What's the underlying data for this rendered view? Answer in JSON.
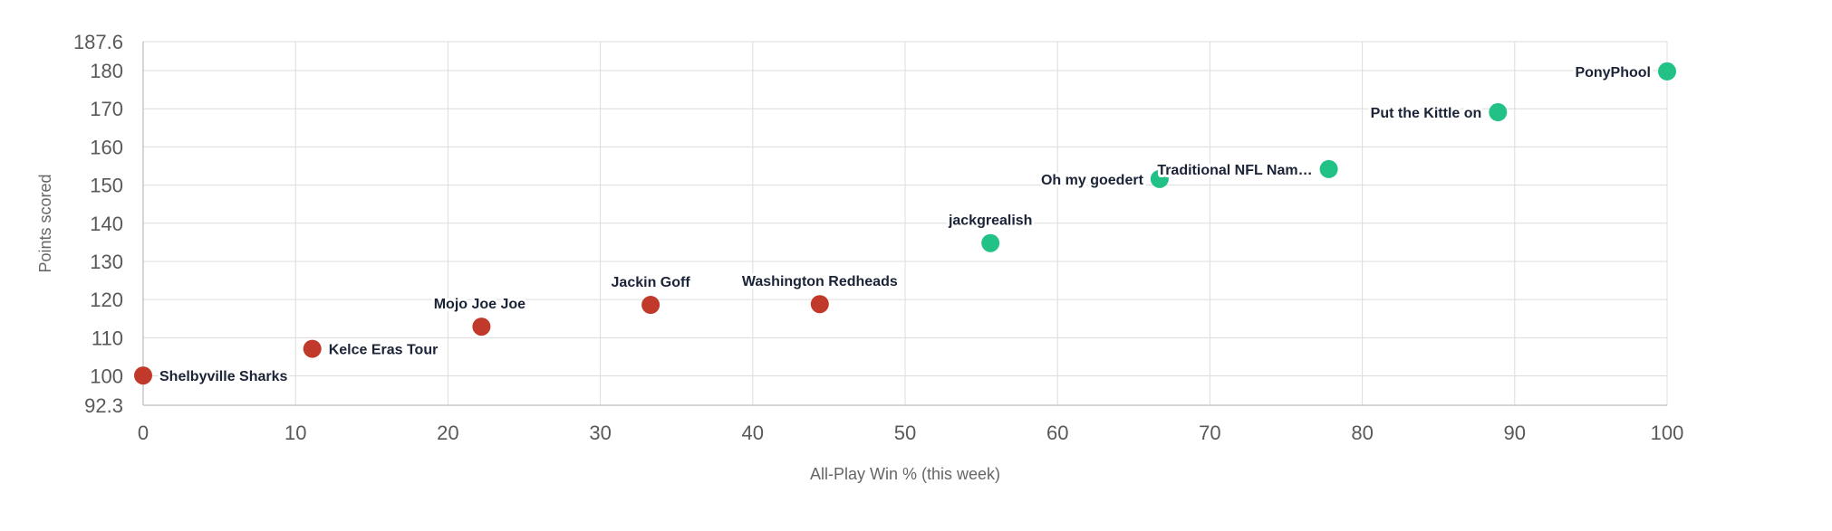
{
  "chart_data": {
    "type": "scatter",
    "title": "",
    "xlabel": "All-Play Win % (this week)",
    "ylabel": "Points scored",
    "xlim": [
      0,
      100
    ],
    "ylim": [
      92.3,
      187.6
    ],
    "x_ticks": [
      0,
      10,
      20,
      30,
      40,
      50,
      60,
      70,
      80,
      90,
      100
    ],
    "y_ticks": [
      92.3,
      100,
      110,
      120,
      130,
      140,
      150,
      160,
      170,
      180,
      187.6
    ],
    "y_tick_labels": [
      "92.3",
      "100",
      "110",
      "120",
      "130",
      "140",
      "150",
      "160",
      "170",
      "180",
      "187.6"
    ],
    "grid": true,
    "colors": {
      "low": "#c0392b",
      "high": "#22c286"
    },
    "points": [
      {
        "label": "Shelbyville Sharks",
        "x": 0,
        "y": 100.1,
        "group": "low",
        "label_pos": "right"
      },
      {
        "label": "Kelce Eras Tour",
        "x": 11.1,
        "y": 107.1,
        "group": "low",
        "label_pos": "right"
      },
      {
        "label": "Mojo Joe Joe",
        "x": 22.2,
        "y": 112.9,
        "group": "low",
        "label_pos": "above-left"
      },
      {
        "label": "Jackin Goff",
        "x": 33.3,
        "y": 118.6,
        "group": "low",
        "label_pos": "above"
      },
      {
        "label": "Washington Redheads",
        "x": 44.4,
        "y": 118.8,
        "group": "low",
        "label_pos": "above"
      },
      {
        "label": "jackgrealish",
        "x": 55.6,
        "y": 134.8,
        "group": "high",
        "label_pos": "above"
      },
      {
        "label": "Oh my goedert",
        "x": 66.7,
        "y": 151.6,
        "group": "high",
        "label_pos": "left"
      },
      {
        "label": "Traditional NFL Nam…",
        "x": 77.8,
        "y": 154.2,
        "group": "high",
        "label_pos": "left"
      },
      {
        "label": "Put the Kittle on",
        "x": 88.9,
        "y": 169.1,
        "group": "high",
        "label_pos": "left"
      },
      {
        "label": "PonyPhool",
        "x": 100,
        "y": 179.8,
        "group": "high",
        "label_pos": "left"
      }
    ]
  }
}
